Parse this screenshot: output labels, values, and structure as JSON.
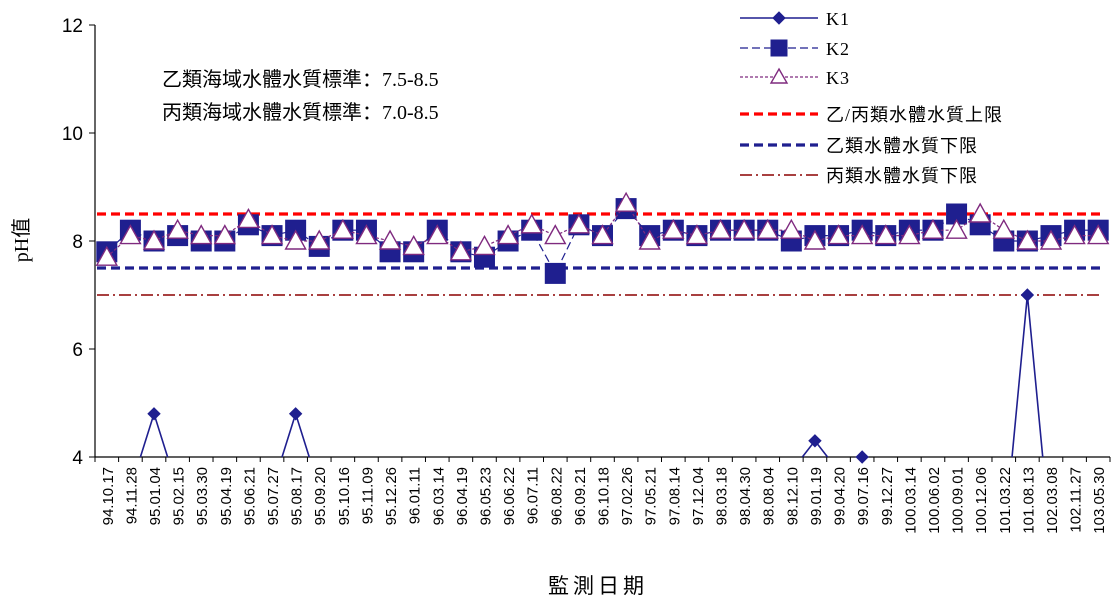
{
  "chart_data": {
    "type": "line",
    "title": "",
    "xlabel": "監測日期",
    "ylabel": "pH值",
    "ylim": [
      4,
      12
    ],
    "yticks": [
      4,
      6,
      8,
      10,
      12
    ],
    "grid": false,
    "legend_position": "top-right",
    "categories": [
      "94.10.17",
      "94.11.28",
      "95.01.04",
      "95.02.15",
      "95.03.30",
      "95.04.19",
      "95.06.21",
      "95.07.27",
      "95.08.17",
      "95.09.20",
      "95.10.16",
      "95.11.09",
      "95.12.26",
      "96.01.11",
      "96.03.14",
      "96.04.19",
      "96.05.23",
      "96.06.22",
      "96.07.11",
      "96.08.22",
      "96.09.21",
      "96.10.18",
      "97.02.26",
      "97.05.21",
      "97.08.14",
      "97.12.04",
      "98.03.18",
      "98.04.30",
      "98.08.04",
      "98.12.10",
      "99.01.19",
      "99.04.20",
      "99.07.16",
      "99.12.27",
      "100.03.14",
      "100.06.02",
      "100.09.01",
      "100.12.06",
      "101.03.22",
      "101.08.13",
      "102.03.08",
      "102.11.27",
      "103.05.30"
    ],
    "x_tick_labels": [
      "94.10.17",
      "94.11.28",
      "95.01.04",
      "95.02.15",
      "95.03.30",
      "95.04.19",
      "95.06.21",
      "95.07.27",
      "95.08.17",
      "95.09.20",
      "95.10.16",
      "95.11.09",
      "95.12.26",
      "96.01.11",
      "96.03.14",
      "96.04.19",
      "96.05.23",
      "96.06.22",
      "96.07.11",
      "96.08.22",
      "96.09.21",
      "96.10.18",
      "97.02.26",
      "97.05.21",
      "97.08.14",
      "97.12.04",
      "98.03.18",
      "98.04.30",
      "98.08.04",
      "98.12.10",
      "99.01.19",
      "99.04.20",
      "99.07.16",
      "99.12.27",
      "100.03.14",
      "100.06.02",
      "100.09.01",
      "100.12.06",
      "101.03.22",
      "101.08.13",
      "102.03.08",
      "102.11.27",
      "103.05.30"
    ],
    "series": [
      {
        "name": "K1",
        "style": "line-diamond",
        "color": "#1f1f8f",
        "values": [
          null,
          null,
          4.8,
          null,
          null,
          null,
          null,
          null,
          4.8,
          null,
          null,
          null,
          null,
          null,
          null,
          null,
          null,
          null,
          null,
          null,
          null,
          null,
          null,
          null,
          null,
          null,
          null,
          null,
          null,
          null,
          4.3,
          null,
          4.0,
          null,
          null,
          null,
          null,
          null,
          null,
          7.0,
          null,
          null,
          null
        ]
      },
      {
        "name": "K2",
        "style": "dash-square",
        "color": "#1f1f8f",
        "values": [
          7.8,
          8.2,
          8.0,
          8.1,
          8.0,
          8.0,
          8.3,
          8.1,
          8.2,
          7.9,
          8.2,
          8.2,
          7.8,
          7.8,
          8.2,
          7.8,
          7.7,
          8.0,
          8.2,
          7.4,
          8.3,
          8.1,
          8.6,
          8.1,
          8.2,
          8.1,
          8.2,
          8.2,
          8.2,
          8.0,
          8.1,
          8.1,
          8.2,
          8.1,
          8.2,
          8.2,
          8.5,
          8.3,
          8.0,
          8.0,
          8.1,
          8.2,
          8.2
        ]
      },
      {
        "name": "K3",
        "style": "dotted-triangle",
        "color": "#7f2a7f",
        "values": [
          7.7,
          8.1,
          8.0,
          8.2,
          8.1,
          8.1,
          8.4,
          8.1,
          8.0,
          8.0,
          8.2,
          8.1,
          8.0,
          7.9,
          8.1,
          7.8,
          7.9,
          8.1,
          8.3,
          8.1,
          8.3,
          8.1,
          8.7,
          8.0,
          8.2,
          8.1,
          8.2,
          8.2,
          8.2,
          8.2,
          8.0,
          8.1,
          8.1,
          8.1,
          8.1,
          8.2,
          8.2,
          8.5,
          8.2,
          8.0,
          8.0,
          8.1,
          8.1
        ]
      }
    ],
    "reference_lines": [
      {
        "name": "乙/丙類水體水質上限",
        "value": 8.5,
        "style": "dashed-bold",
        "color": "#ff0000"
      },
      {
        "name": "乙類水體水質下限",
        "value": 7.5,
        "style": "dashed-bold",
        "color": "#1f1f8f"
      },
      {
        "name": "丙類水體水質下限",
        "value": 7.0,
        "style": "dash-dot",
        "color": "#8b0000"
      }
    ],
    "annotations": [
      "乙類海域水體水質標準：7.5-8.5",
      "丙類海域水體水質標準：7.0-8.5"
    ]
  }
}
